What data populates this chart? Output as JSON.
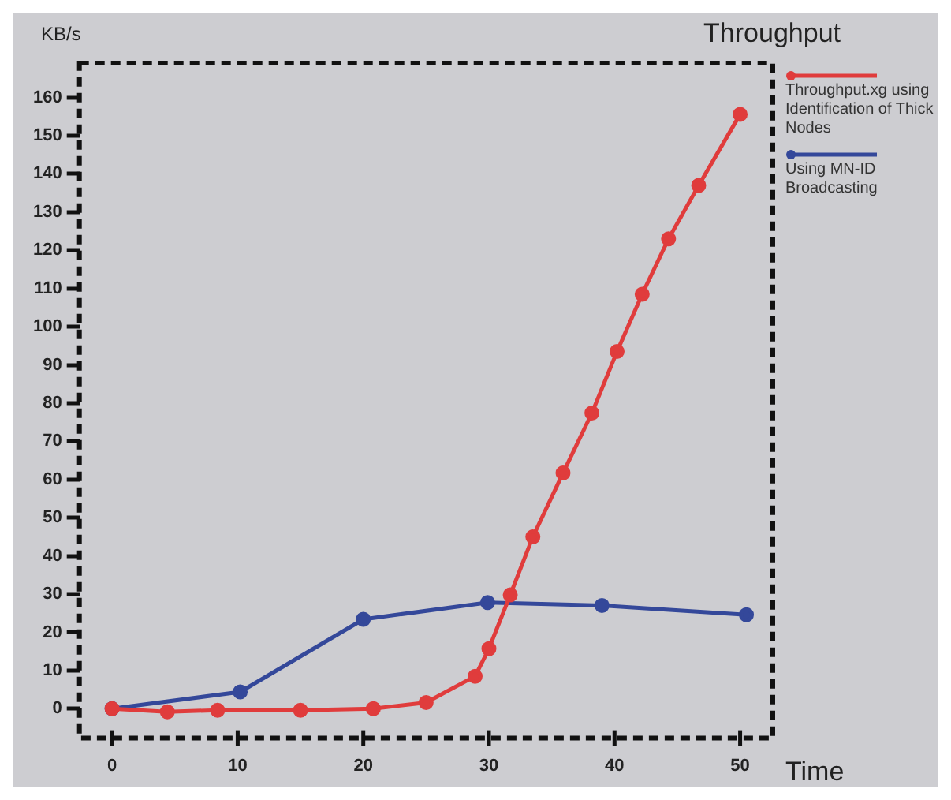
{
  "chart_data": {
    "type": "line",
    "title": "Throughput",
    "xlabel": "Time",
    "ylabel": "KB/s",
    "xlim": [
      -2.6,
      52.6
    ],
    "xticks": [
      0,
      10,
      20,
      30,
      40,
      50
    ],
    "ylim": [
      -7.7,
      169
    ],
    "yticks": [
      0,
      10,
      20,
      30,
      40,
      50,
      60,
      70,
      80,
      90,
      100,
      110,
      120,
      130,
      140,
      150,
      160
    ],
    "grid": false,
    "legend": "right",
    "marker": "circle",
    "line_style": "solid",
    "series": [
      {
        "name": "Throughput.xg using Identification of Thick Nodes",
        "color": "#e03c3c",
        "x": [
          0,
          4.4,
          8.4,
          15,
          20.8,
          25,
          28.9,
          30,
          31.7,
          33.5,
          35.9,
          38.2,
          40.2,
          42.2,
          44.3,
          46.7,
          50
        ],
        "values": [
          0,
          -0.8,
          -0.4,
          -0.4,
          0,
          1.6,
          8.5,
          15.7,
          29.8,
          45,
          61.7,
          77.4,
          93.5,
          108.5,
          123,
          137,
          155.6
        ]
      },
      {
        "name": "Using MN-ID Broadcasting",
        "color": "#34489a",
        "x": [
          0,
          10.2,
          20,
          29.9,
          39,
          50.5
        ],
        "values": [
          0,
          4.4,
          23.4,
          27.8,
          27,
          24.6
        ]
      }
    ]
  }
}
